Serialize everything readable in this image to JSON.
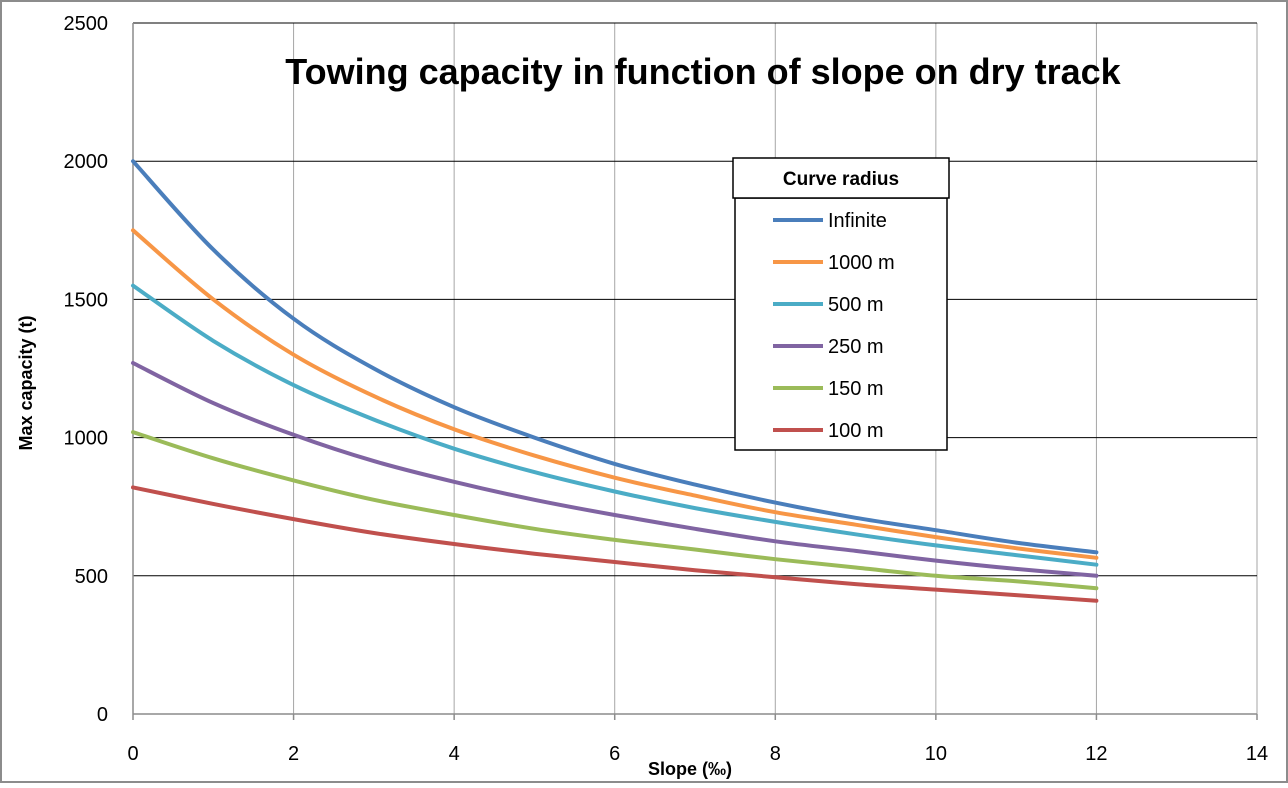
{
  "chart_data": {
    "type": "line",
    "title": "Towing capacity in function of slope on dry track",
    "xlabel": "Slope (‰)",
    "ylabel": "Max capacity (t)",
    "xlim": [
      0,
      14
    ],
    "ylim": [
      0,
      2500
    ],
    "xticks": [
      0,
      2,
      4,
      6,
      8,
      10,
      12,
      14
    ],
    "yticks": [
      0,
      500,
      1000,
      1500,
      2000,
      2500
    ],
    "grid": true,
    "legend": {
      "title": "Curve radius",
      "position": "upper-right"
    },
    "series": [
      {
        "name": "Infinite",
        "color": "#4a7ebb",
        "x": [
          0,
          1,
          2,
          3,
          4,
          5,
          6,
          7,
          8,
          9,
          10,
          11,
          12
        ],
        "y": [
          2000,
          1680,
          1430,
          1250,
          1110,
          1000,
          905,
          830,
          765,
          710,
          665,
          620,
          585
        ]
      },
      {
        "name": "1000 m",
        "color": "#f79646",
        "x": [
          0,
          1,
          2,
          3,
          4,
          5,
          6,
          7,
          8,
          9,
          10,
          11,
          12
        ],
        "y": [
          1750,
          1500,
          1300,
          1150,
          1030,
          935,
          855,
          790,
          730,
          685,
          640,
          600,
          565
        ]
      },
      {
        "name": "500 m",
        "color": "#4bacc6",
        "x": [
          0,
          1,
          2,
          3,
          4,
          5,
          6,
          7,
          8,
          9,
          10,
          11,
          12
        ],
        "y": [
          1550,
          1350,
          1190,
          1065,
          960,
          875,
          805,
          745,
          695,
          650,
          610,
          575,
          540
        ]
      },
      {
        "name": "250 m",
        "color": "#8064a2",
        "x": [
          0,
          1,
          2,
          3,
          4,
          5,
          6,
          7,
          8,
          9,
          10,
          11,
          12
        ],
        "y": [
          1270,
          1125,
          1010,
          915,
          840,
          775,
          720,
          670,
          625,
          590,
          555,
          525,
          500
        ]
      },
      {
        "name": "150 m",
        "color": "#9bbb59",
        "x": [
          0,
          1,
          2,
          3,
          4,
          5,
          6,
          7,
          8,
          9,
          10,
          11,
          12
        ],
        "y": [
          1020,
          925,
          845,
          775,
          720,
          670,
          630,
          595,
          560,
          530,
          500,
          480,
          455
        ]
      },
      {
        "name": "100 m",
        "color": "#c0504d",
        "x": [
          0,
          1,
          2,
          3,
          4,
          5,
          6,
          7,
          8,
          9,
          10,
          11,
          12
        ],
        "y": [
          820,
          760,
          705,
          655,
          615,
          580,
          550,
          520,
          495,
          470,
          450,
          430,
          410
        ]
      }
    ]
  }
}
